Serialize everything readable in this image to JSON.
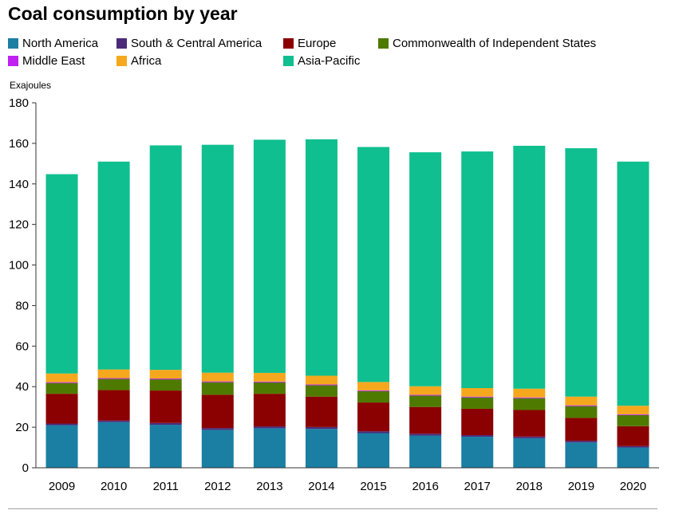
{
  "chart_data": {
    "type": "bar",
    "stacked": true,
    "title": "Coal consumption by year",
    "ylabel": "Exajoules",
    "xlabel": "",
    "ylim": [
      0,
      180
    ],
    "yticks": [
      0,
      20,
      40,
      60,
      80,
      100,
      120,
      140,
      160,
      180
    ],
    "grid": false,
    "legend_position": "top",
    "categories": [
      "2009",
      "2010",
      "2011",
      "2012",
      "2013",
      "2014",
      "2015",
      "2016",
      "2017",
      "2018",
      "2019",
      "2020"
    ],
    "series": [
      {
        "name": "North America",
        "color": "#1a7fa3",
        "values": [
          21.0,
          22.5,
          21.2,
          18.7,
          19.5,
          19.2,
          17.1,
          15.9,
          15.3,
          14.6,
          12.5,
          10.0
        ]
      },
      {
        "name": "South & Central America",
        "color": "#4b2a7a",
        "values": [
          0.8,
          0.8,
          0.9,
          0.9,
          0.9,
          0.9,
          0.9,
          0.9,
          0.8,
          0.8,
          0.8,
          0.7
        ]
      },
      {
        "name": "Europe",
        "color": "#8b0000",
        "values": [
          14.7,
          15.0,
          16.0,
          16.4,
          16.1,
          15.0,
          14.2,
          13.2,
          13.0,
          13.1,
          11.3,
          9.8
        ]
      },
      {
        "name": "Commonwealth of Independent States",
        "color": "#4f7a00",
        "values": [
          5.3,
          5.5,
          5.5,
          6.2,
          5.6,
          5.6,
          5.6,
          5.6,
          5.6,
          5.8,
          5.8,
          5.5
        ]
      },
      {
        "name": "Middle East",
        "color": "#c020f0",
        "values": [
          0.4,
          0.4,
          0.4,
          0.4,
          0.4,
          0.4,
          0.4,
          0.4,
          0.4,
          0.4,
          0.4,
          0.4
        ]
      },
      {
        "name": "Africa",
        "color": "#f5a81d",
        "values": [
          4.3,
          4.3,
          4.3,
          4.3,
          4.3,
          4.3,
          4.1,
          4.2,
          4.2,
          4.3,
          4.3,
          4.2
        ]
      },
      {
        "name": "Asia-Pacific",
        "color": "#0fbf8f",
        "values": [
          98.3,
          102.5,
          110.7,
          112.4,
          115.0,
          116.6,
          115.9,
          115.4,
          116.7,
          119.8,
          122.5,
          120.4
        ]
      }
    ]
  }
}
